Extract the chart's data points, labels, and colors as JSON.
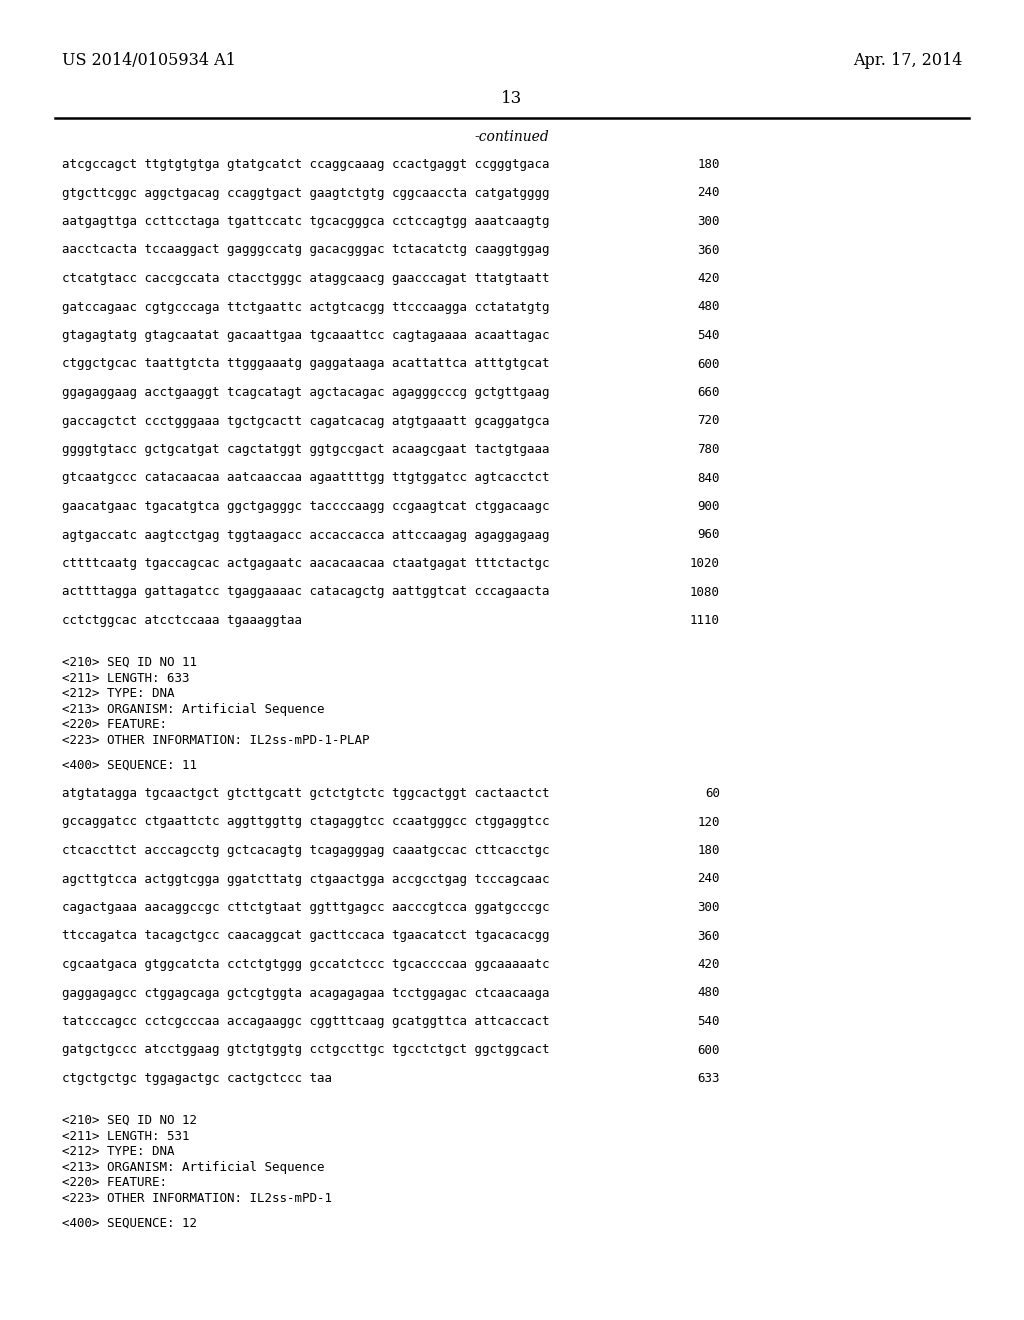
{
  "background_color": "#ffffff",
  "header_left": "US 2014/0105934 A1",
  "header_right": "Apr. 17, 2014",
  "page_number": "13",
  "continued_label": "-continued",
  "font_family": "monospace",
  "header_font": "serif",
  "sequence_lines_top": [
    [
      "atcgccagct ttgtgtgtga gtatgcatct ccaggcaaag ccactgaggt ccgggtgaca",
      "180"
    ],
    [
      "gtgcttcggc aggctgacag ccaggtgact gaagtctgtg cggcaaccta catgatgggg",
      "240"
    ],
    [
      "aatgagttga ccttcctaga tgattccatc tgcacgggca cctccagtgg aaatcaagtg",
      "300"
    ],
    [
      "aacctcacta tccaaggact gagggccatg gacacgggac tctacatctg caaggtggag",
      "360"
    ],
    [
      "ctcatgtacc caccgccata ctacctgggc ataggcaacg gaacccagat ttatgtaatt",
      "420"
    ],
    [
      "gatccagaac cgtgcccaga ttctgaattc actgtcacgg ttcccaagga cctatatgtg",
      "480"
    ],
    [
      "gtagagtatg gtagcaatat gacaattgaa tgcaaattcc cagtagaaaa acaattagac",
      "540"
    ],
    [
      "ctggctgcac taattgtcta ttgggaaatg gaggataaga acattattca atttgtgcat",
      "600"
    ],
    [
      "ggagaggaag acctgaaggt tcagcatagt agctacagac agagggcccg gctgttgaag",
      "660"
    ],
    [
      "gaccagctct ccctgggaaa tgctgcactt cagatcacag atgtgaaatt gcaggatgca",
      "720"
    ],
    [
      "ggggtgtacc gctgcatgat cagctatggt ggtgccgact acaagcgaat tactgtgaaa",
      "780"
    ],
    [
      "gtcaatgccc catacaacaa aatcaaccaa agaattttgg ttgtggatcc agtcacctct",
      "840"
    ],
    [
      "gaacatgaac tgacatgtca ggctgagggc taccccaagg ccgaagtcat ctggacaagc",
      "900"
    ],
    [
      "agtgaccatc aagtcctgag tggtaagacc accaccacca attccaagag agaggagaag",
      "960"
    ],
    [
      "cttttcaatg tgaccagcac actgagaatc aacacaacaa ctaatgagat tttctactgc",
      "1020"
    ],
    [
      "acttttagga gattagatcc tgaggaaaac catacagctg aattggtcat cccagaacta",
      "1080"
    ],
    [
      "cctctggcac atcctccaaa tgaaaggtaa",
      "1110"
    ]
  ],
  "seq11_header": [
    "<210> SEQ ID NO 11",
    "<211> LENGTH: 633",
    "<212> TYPE: DNA",
    "<213> ORGANISM: Artificial Sequence",
    "<220> FEATURE:",
    "<223> OTHER INFORMATION: IL2ss-mPD-1-PLAP"
  ],
  "seq11_sequence_label": "<400> SEQUENCE: 11",
  "seq11_lines": [
    [
      "atgtatagga tgcaactgct gtcttgcatt gctctgtctc tggcactggt cactaactct",
      "60"
    ],
    [
      "gccaggatcc ctgaattctc aggttggttg ctagaggtcc ccaatgggcc ctggaggtcc",
      "120"
    ],
    [
      "ctcaccttct acccagcctg gctcacagtg tcagagggag caaatgccac cttcacctgc",
      "180"
    ],
    [
      "agcttgtcca actggtcgga ggatcttatg ctgaactgga accgcctgag tcccagcaac",
      "240"
    ],
    [
      "cagactgaaa aacaggccgc cttctgtaat ggtttgagcc aacccgtcca ggatgcccgc",
      "300"
    ],
    [
      "ttccagatca tacagctgcc caacaggcat gacttccaca tgaacatcct tgacacacgg",
      "360"
    ],
    [
      "cgcaatgaca gtggcatcta cctctgtggg gccatctccc tgcaccccaa ggcaaaaatc",
      "420"
    ],
    [
      "gaggagagcc ctggagcaga gctcgtggta acagagagaa tcctggagac ctcaacaaga",
      "480"
    ],
    [
      "tatcccagcc cctcgcccaa accagaaggc cggtttcaag gcatggttca attcaccact",
      "540"
    ],
    [
      "gatgctgccc atcctggaag gtctgtggtg cctgccttgc tgcctctgct ggctggcact",
      "600"
    ],
    [
      "ctgctgctgc tggagactgc cactgctccc taa",
      "633"
    ]
  ],
  "seq12_header": [
    "<210> SEQ ID NO 12",
    "<211> LENGTH: 531",
    "<212> TYPE: DNA",
    "<213> ORGANISM: Artificial Sequence",
    "<220> FEATURE:",
    "<223> OTHER INFORMATION: IL2ss-mPD-1"
  ],
  "seq12_sequence_label": "<400> SEQUENCE: 12"
}
